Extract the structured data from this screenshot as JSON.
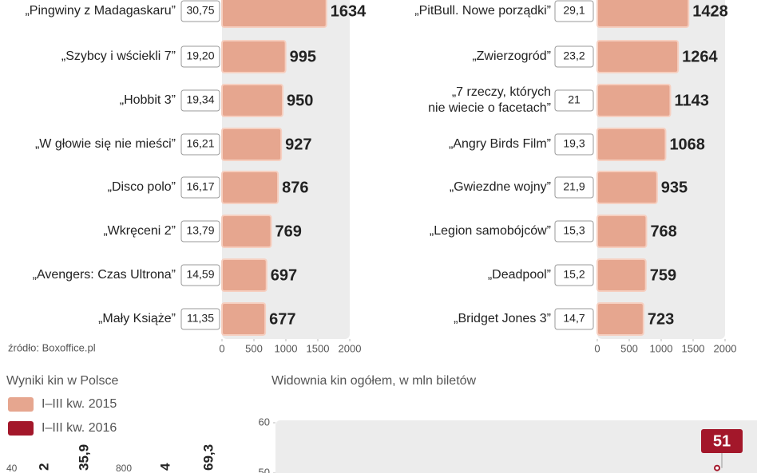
{
  "chart_data": [
    {
      "type": "hbar",
      "categories": [
        "„Pingwiny z Madagaskaru”",
        "„Szybcy i wściekli 7”",
        "„Hobbit 3”",
        "„W głowie się nie mieści”",
        "„Disco polo”",
        "„Wkręceni 2”",
        "„Avengers: Czas Ultrona”",
        "„Mały Książe”"
      ],
      "box_labels": [
        "30,75",
        "19,20",
        "19,34",
        "16,21",
        "16,17",
        "13,79",
        "14,59",
        "11,35"
      ],
      "values": [
        1634,
        995,
        950,
        927,
        876,
        769,
        697,
        677
      ],
      "color": "#e6a68f",
      "xlim": [
        0,
        2000
      ],
      "xticks": [
        0,
        500,
        1000,
        1500,
        2000
      ],
      "source": "źródło: Boxoffice.pl"
    },
    {
      "type": "hbar",
      "categories": [
        "„PitBull. Nowe porządki”",
        "„Zwierzogród”",
        "„7 rzeczy, których\nnie wiecie o facetach”",
        "„Angry Birds Film”",
        "„Gwiezdne wojny”",
        "„Legion samobójców”",
        "„Deadpool”",
        "„Bridget Jones 3”"
      ],
      "box_labels": [
        "29,1",
        "23,2",
        "21",
        "19,3",
        "21,9",
        "15,3",
        "15,2",
        "14,7"
      ],
      "values": [
        1428,
        1264,
        1143,
        1068,
        935,
        768,
        759,
        723
      ],
      "color": "#e6a68f",
      "xlim": [
        0,
        2000
      ],
      "xticks": [
        0,
        500,
        1000,
        1500,
        2000
      ]
    },
    {
      "type": "legend",
      "title": "Wyniki kin w Polsce",
      "series": [
        {
          "name": "I–III kw. 2015",
          "color": "#e6a68f"
        },
        {
          "name": "I–III kw. 2016",
          "color": "#a3172a"
        }
      ],
      "tick_labels": [
        "40",
        "800"
      ],
      "value_labels": [
        "2",
        "35,9",
        "4",
        "69,3"
      ]
    },
    {
      "type": "line",
      "title": "Widownia kin ogółem, w mln biletów",
      "categories": [
        null
      ],
      "values": [
        51
      ],
      "value_labels": [
        "51"
      ],
      "color": "#a3172a",
      "ylim": [
        50,
        60
      ],
      "yticks": [
        50,
        60
      ]
    }
  ]
}
